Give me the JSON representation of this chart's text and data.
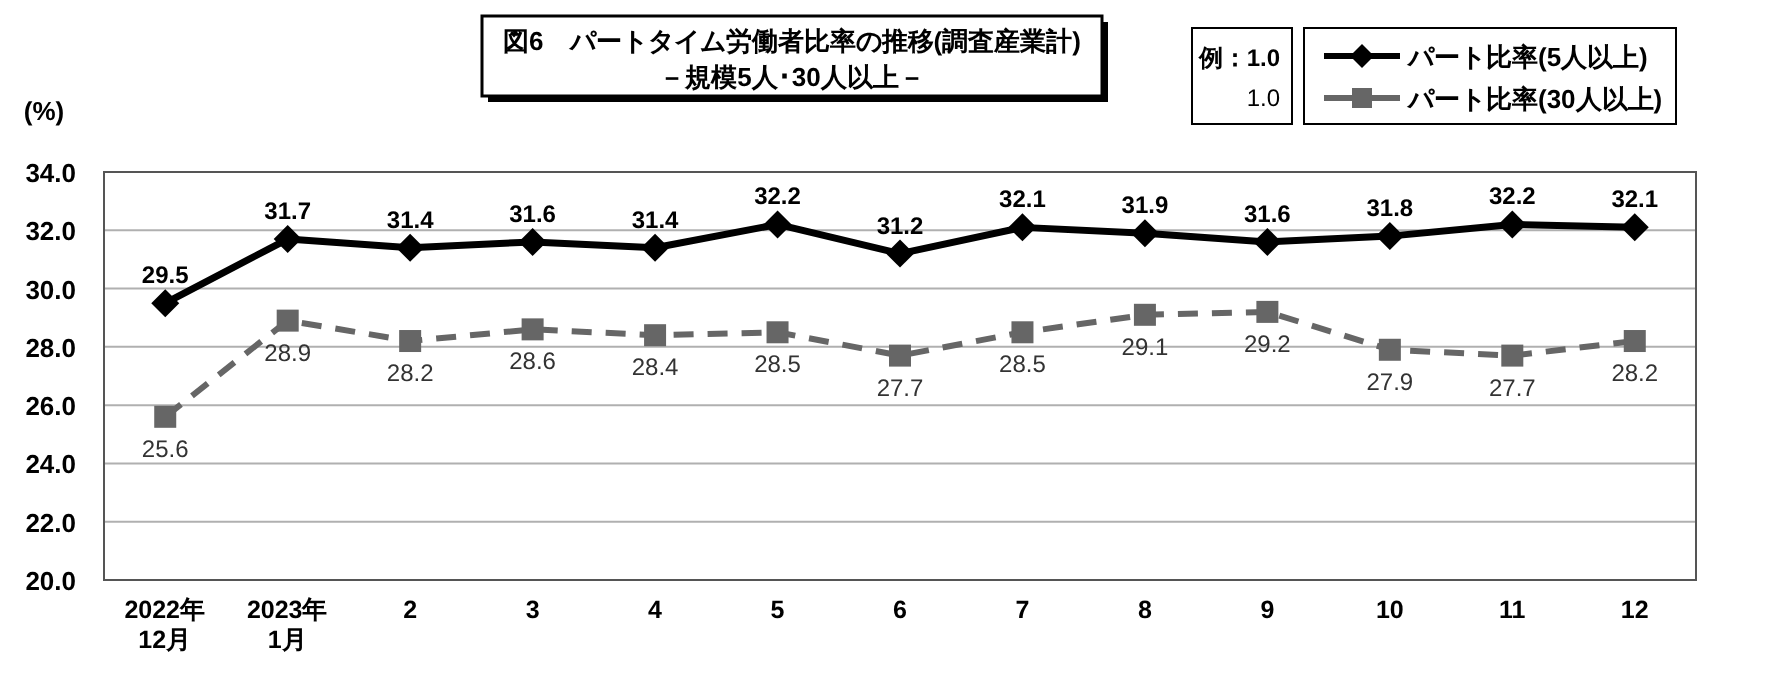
{
  "chart_data": {
    "type": "line",
    "title": "図6　パートタイム労働者比率の推移(調査産業計)",
    "subtitle": "－規模5人･30人以上－",
    "ylabel": "(%)",
    "categories": [
      "2022年\n12月",
      "2023年\n1月",
      "2",
      "3",
      "4",
      "5",
      "6",
      "7",
      "8",
      "9",
      "10",
      "11",
      "12"
    ],
    "series": [
      {
        "name": "パート比率(5人以上)",
        "color": "#000000",
        "marker": "diamond",
        "line_style": "solid",
        "values": [
          29.5,
          31.7,
          31.4,
          31.6,
          31.4,
          32.2,
          31.2,
          32.1,
          31.9,
          31.6,
          31.8,
          32.2,
          32.1
        ]
      },
      {
        "name": "パート比率(30人以上)",
        "color": "#666666",
        "marker": "square",
        "line_style": "dashed",
        "values": [
          25.6,
          28.9,
          28.2,
          28.6,
          28.4,
          28.5,
          27.7,
          28.5,
          29.1,
          29.2,
          27.9,
          27.7,
          28.2
        ]
      }
    ],
    "ylim": [
      20,
      34
    ],
    "yticks": [
      {
        "value": 20,
        "label": "20.0"
      },
      {
        "value": 22,
        "label": "22.0"
      },
      {
        "value": 24,
        "label": "24.0"
      },
      {
        "value": 26,
        "label": "26.0"
      },
      {
        "value": 28,
        "label": "28.0"
      },
      {
        "value": 30,
        "label": "30.0"
      },
      {
        "value": 32,
        "label": "32.0"
      },
      {
        "value": 34,
        "label": "34.0"
      }
    ],
    "grid": "y",
    "legend": "top right",
    "data_labels": true,
    "annotations": [
      "例：1.0",
      "1.0"
    ]
  }
}
